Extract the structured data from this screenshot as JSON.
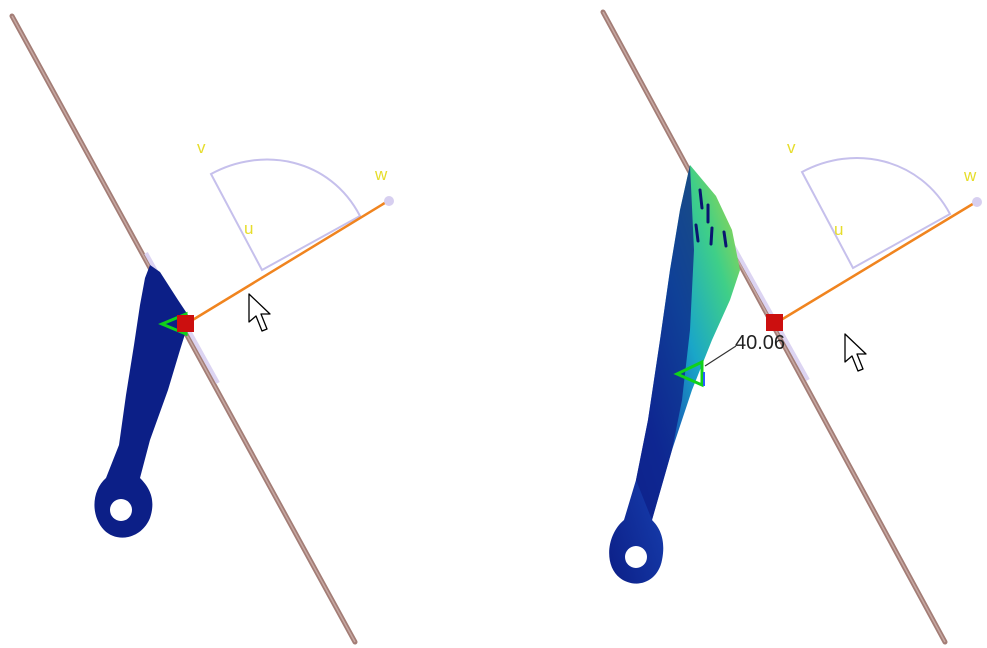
{
  "colors": {
    "background": "#ffffff",
    "guide_line": "#a37d76",
    "part_fill": "#0c1f87",
    "part_dark": "#0a1670",
    "manipulator_arc": "#c6c0ec",
    "manipulator_axis": "#f0841f",
    "manipulator_origin": "#cc0f0f",
    "axis_label": "#e6dd2b",
    "constraint_symbol": "#10d21a",
    "dimension_text": "#222222"
  },
  "icons": {
    "cursor": "arrow-cursor-icon",
    "constraint": "triangle-constraint-icon",
    "origin": "square-origin-handle-icon"
  },
  "views": {
    "before": {
      "axes": {
        "u": "u",
        "v": "v",
        "w": "w"
      }
    },
    "after": {
      "axes": {
        "u": "u",
        "v": "v",
        "w": "w"
      },
      "dimension_value": "40.06"
    }
  }
}
